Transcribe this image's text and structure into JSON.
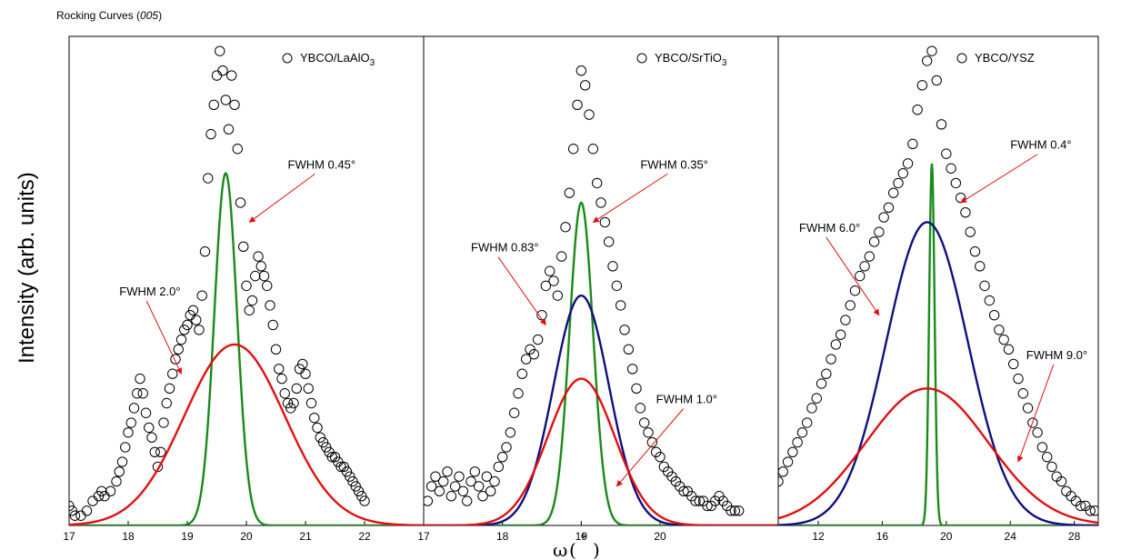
{
  "figure": {
    "title_main": "Rocking Curves (",
    "title_em": "005",
    "title_end": ")",
    "ylabel": "Intensity (arb. units)",
    "xlabel": "ω (°)",
    "xlabel_omega": "ω",
    "xlabel_open": "(",
    "xlabel_deg": "°",
    "xlabel_close": ")",
    "colors": {
      "data_markers": "#000000",
      "green": "#1a8a1a",
      "red": "#e01010",
      "blue": "#101080",
      "arrow": "#e01010"
    }
  },
  "chart_data": [
    {
      "type": "scatter",
      "legend": {
        "marker": "○",
        "text": "YBCO/LaAlO",
        "sub": "3",
        "placement": "top-right"
      },
      "xlim": [
        17,
        23
      ],
      "ylim": [
        0,
        1
      ],
      "xticks": [
        17,
        18,
        19,
        20,
        21,
        22
      ],
      "tick_labels": [
        "17",
        "18",
        "19",
        "20",
        "21",
        "22"
      ],
      "data_series": {
        "name": "YBCO/LaAlO3",
        "x": [
          17.0,
          17.05,
          17.1,
          17.2,
          17.3,
          17.4,
          17.5,
          17.55,
          17.6,
          17.7,
          17.8,
          17.85,
          17.9,
          17.95,
          18.0,
          18.05,
          18.1,
          18.15,
          18.2,
          18.25,
          18.3,
          18.35,
          18.4,
          18.45,
          18.5,
          18.55,
          18.6,
          18.65,
          18.7,
          18.75,
          18.8,
          18.85,
          18.9,
          18.95,
          19.0,
          19.05,
          19.1,
          19.15,
          19.2,
          19.25,
          19.3,
          19.35,
          19.4,
          19.45,
          19.5,
          19.55,
          19.6,
          19.65,
          19.7,
          19.75,
          19.8,
          19.85,
          19.9,
          19.95,
          20.0,
          20.05,
          20.1,
          20.15,
          20.2,
          20.25,
          20.3,
          20.35,
          20.4,
          20.45,
          20.5,
          20.55,
          20.6,
          20.65,
          20.7,
          20.75,
          20.8,
          20.85,
          20.9,
          20.95,
          21.0,
          21.05,
          21.1,
          21.15,
          21.2,
          21.25,
          21.3,
          21.35,
          21.4,
          21.45,
          21.5,
          21.55,
          21.6,
          21.65,
          21.7,
          21.75,
          21.8,
          21.85,
          21.9,
          21.95,
          22.0
        ],
        "y": [
          0.04,
          0.03,
          0.02,
          0.02,
          0.03,
          0.05,
          0.06,
          0.07,
          0.06,
          0.07,
          0.09,
          0.11,
          0.13,
          0.16,
          0.19,
          0.21,
          0.24,
          0.27,
          0.3,
          0.27,
          0.23,
          0.2,
          0.18,
          0.15,
          0.12,
          0.15,
          0.21,
          0.25,
          0.28,
          0.31,
          0.34,
          0.36,
          0.38,
          0.4,
          0.41,
          0.43,
          0.44,
          0.42,
          0.4,
          0.47,
          0.56,
          0.71,
          0.8,
          0.86,
          0.92,
          0.97,
          0.93,
          0.87,
          0.81,
          0.92,
          0.86,
          0.77,
          0.66,
          0.57,
          0.49,
          0.44,
          0.46,
          0.51,
          0.55,
          0.53,
          0.51,
          0.49,
          0.45,
          0.41,
          0.36,
          0.32,
          0.3,
          0.27,
          0.25,
          0.24,
          0.25,
          0.28,
          0.32,
          0.33,
          0.31,
          0.28,
          0.25,
          0.22,
          0.2,
          0.18,
          0.17,
          0.16,
          0.15,
          0.14,
          0.14,
          0.13,
          0.12,
          0.12,
          0.11,
          0.1,
          0.09,
          0.08,
          0.07,
          0.06,
          0.05
        ]
      },
      "fits": [
        {
          "color": "green",
          "center": 19.65,
          "fwhm": 0.45,
          "amp": 0.72
        },
        {
          "color": "red",
          "center": 19.8,
          "fwhm": 2.0,
          "amp": 0.37
        }
      ],
      "annotations": [
        {
          "text": "FWHM 0.45°",
          "x": 20.7,
          "y": 0.73,
          "arrow_to": [
            20.05,
            0.62
          ]
        },
        {
          "text": "FWHM 2.0°",
          "x": 17.85,
          "y": 0.47,
          "arrow_to": [
            18.9,
            0.31
          ]
        }
      ]
    },
    {
      "type": "scatter",
      "legend": {
        "marker": "○",
        "text": "YBCO/SrTiO",
        "sub": "3",
        "placement": "top-right"
      },
      "xlim": [
        17,
        21.5
      ],
      "ylim": [
        0,
        1
      ],
      "xticks": [
        17,
        18,
        19,
        20
      ],
      "tick_labels": [
        "17",
        "18",
        "19",
        "20"
      ],
      "data_series": {
        "name": "YBCO/SrTiO3",
        "x": [
          17.05,
          17.1,
          17.15,
          17.2,
          17.25,
          17.3,
          17.35,
          17.4,
          17.45,
          17.5,
          17.55,
          17.6,
          17.65,
          17.7,
          17.75,
          17.8,
          17.85,
          17.9,
          17.95,
          18.0,
          18.05,
          18.1,
          18.15,
          18.2,
          18.25,
          18.3,
          18.35,
          18.4,
          18.45,
          18.5,
          18.55,
          18.6,
          18.65,
          18.7,
          18.75,
          18.8,
          18.85,
          18.9,
          18.95,
          19.0,
          19.05,
          19.1,
          19.15,
          19.2,
          19.25,
          19.3,
          19.35,
          19.4,
          19.45,
          19.5,
          19.55,
          19.6,
          19.65,
          19.7,
          19.75,
          19.8,
          19.85,
          19.9,
          19.95,
          20.0,
          20.05,
          20.1,
          20.15,
          20.2,
          20.25,
          20.3,
          20.35,
          20.4,
          20.45,
          20.5,
          20.55,
          20.6,
          20.65,
          20.7,
          20.75,
          20.8,
          20.85,
          20.9,
          20.95,
          21.0
        ],
        "y": [
          0.05,
          0.08,
          0.1,
          0.07,
          0.09,
          0.11,
          0.06,
          0.08,
          0.1,
          0.07,
          0.05,
          0.09,
          0.11,
          0.08,
          0.06,
          0.1,
          0.07,
          0.09,
          0.12,
          0.14,
          0.16,
          0.19,
          0.23,
          0.27,
          0.31,
          0.34,
          0.36,
          0.35,
          0.38,
          0.43,
          0.49,
          0.52,
          0.5,
          0.47,
          0.55,
          0.61,
          0.68,
          0.77,
          0.86,
          0.93,
          0.9,
          0.84,
          0.77,
          0.7,
          0.66,
          0.62,
          0.58,
          0.53,
          0.49,
          0.45,
          0.4,
          0.36,
          0.32,
          0.28,
          0.24,
          0.21,
          0.19,
          0.17,
          0.15,
          0.14,
          0.12,
          0.11,
          0.1,
          0.09,
          0.08,
          0.07,
          0.07,
          0.06,
          0.05,
          0.05,
          0.05,
          0.04,
          0.04,
          0.05,
          0.06,
          0.05,
          0.04,
          0.03,
          0.03,
          0.03
        ]
      },
      "fits": [
        {
          "color": "green",
          "center": 19.0,
          "fwhm": 0.35,
          "amp": 0.66
        },
        {
          "color": "blue",
          "center": 19.0,
          "fwhm": 0.83,
          "amp": 0.47
        },
        {
          "color": "red",
          "center": 19.0,
          "fwhm": 1.0,
          "amp": 0.3
        }
      ],
      "annotations": [
        {
          "text": "FWHM 0.35°",
          "x": 19.75,
          "y": 0.73,
          "arrow_to": [
            19.15,
            0.62
          ]
        },
        {
          "text": "FWHM 0.83°",
          "x": 17.6,
          "y": 0.56,
          "arrow_to": [
            18.55,
            0.41
          ]
        },
        {
          "text": "FWHM 1.0°",
          "x": 19.95,
          "y": 0.25,
          "arrow_to": [
            19.45,
            0.08
          ]
        }
      ]
    },
    {
      "type": "scatter",
      "legend": {
        "marker": "○",
        "text": "YBCO/YSZ",
        "sub": "",
        "placement": "top-right"
      },
      "xlim": [
        9.5,
        29.5
      ],
      "ylim": [
        0,
        1
      ],
      "xticks": [
        12,
        16,
        20,
        24,
        28
      ],
      "tick_labels": [
        "12",
        "16",
        "20",
        "24",
        "28"
      ],
      "data_series": {
        "name": "YBCO/YSZ",
        "x": [
          9.5,
          9.8,
          10.1,
          10.4,
          10.7,
          11.0,
          11.3,
          11.6,
          11.9,
          12.2,
          12.5,
          12.8,
          13.1,
          13.4,
          13.7,
          14.0,
          14.3,
          14.6,
          14.9,
          15.2,
          15.5,
          15.8,
          16.1,
          16.4,
          16.7,
          17.0,
          17.3,
          17.6,
          17.9,
          18.2,
          18.5,
          18.8,
          19.1,
          19.4,
          19.7,
          20.0,
          20.3,
          20.6,
          20.9,
          21.2,
          21.5,
          21.8,
          22.1,
          22.4,
          22.7,
          23.0,
          23.3,
          23.6,
          23.9,
          24.2,
          24.5,
          24.8,
          25.1,
          25.4,
          25.7,
          26.0,
          26.3,
          26.6,
          26.9,
          27.2,
          27.5,
          27.8,
          28.1,
          28.4,
          28.7,
          29.0,
          29.3
        ],
        "y": [
          0.09,
          0.11,
          0.13,
          0.15,
          0.17,
          0.19,
          0.21,
          0.24,
          0.26,
          0.29,
          0.31,
          0.34,
          0.37,
          0.39,
          0.42,
          0.45,
          0.48,
          0.51,
          0.53,
          0.55,
          0.58,
          0.6,
          0.63,
          0.65,
          0.68,
          0.7,
          0.72,
          0.74,
          0.78,
          0.85,
          0.9,
          0.95,
          0.97,
          0.91,
          0.82,
          0.76,
          0.73,
          0.7,
          0.67,
          0.64,
          0.6,
          0.56,
          0.53,
          0.49,
          0.46,
          0.43,
          0.4,
          0.38,
          0.36,
          0.33,
          0.3,
          0.27,
          0.24,
          0.21,
          0.19,
          0.16,
          0.14,
          0.12,
          0.1,
          0.09,
          0.07,
          0.06,
          0.05,
          0.04,
          0.04,
          0.03,
          0.03
        ]
      },
      "fits": [
        {
          "color": "green",
          "center": 19.1,
          "fwhm": 0.4,
          "amp": 0.74
        },
        {
          "color": "blue",
          "center": 18.8,
          "fwhm": 6.0,
          "amp": 0.62
        },
        {
          "color": "red",
          "center": 18.8,
          "fwhm": 9.0,
          "amp": 0.28
        }
      ],
      "annotations": [
        {
          "text": "FWHM 0.4°",
          "x": 24.0,
          "y": 0.77,
          "arrow_to": [
            20.9,
            0.66
          ]
        },
        {
          "text": "FWHM 6.0°",
          "x": 10.8,
          "y": 0.6,
          "arrow_to": [
            15.8,
            0.43
          ]
        },
        {
          "text": "FWHM 9.0°",
          "x": 25.0,
          "y": 0.34,
          "arrow_to": [
            24.5,
            0.13
          ]
        }
      ]
    }
  ]
}
